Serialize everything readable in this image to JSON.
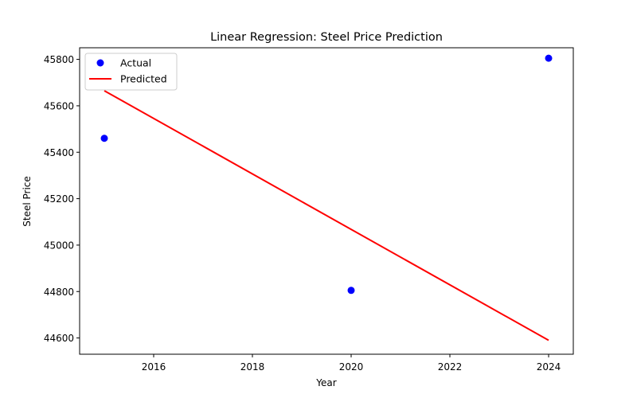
{
  "chart_data": {
    "type": "scatter",
    "title": "Linear Regression: Steel Price Prediction",
    "xlabel": "Year",
    "ylabel": "Steel Price",
    "xlim": [
      2014.5,
      2024.5
    ],
    "ylim": [
      44530,
      45850
    ],
    "xticks": [
      2016,
      2018,
      2020,
      2022,
      2024
    ],
    "yticks": [
      44600,
      44800,
      45000,
      45200,
      45400,
      45600,
      45800
    ],
    "grid": false,
    "legend_position": "top-left",
    "series": [
      {
        "name": "Actual",
        "kind": "scatter",
        "color": "#0000ff",
        "points": [
          {
            "x": 2015,
            "y": 45460
          },
          {
            "x": 2020,
            "y": 44805
          },
          {
            "x": 2024,
            "y": 45805
          }
        ]
      },
      {
        "name": "Predicted",
        "kind": "line",
        "color": "#ff0000",
        "points": [
          {
            "x": 2015,
            "y": 45665
          },
          {
            "x": 2024,
            "y": 44590
          }
        ]
      }
    ]
  }
}
